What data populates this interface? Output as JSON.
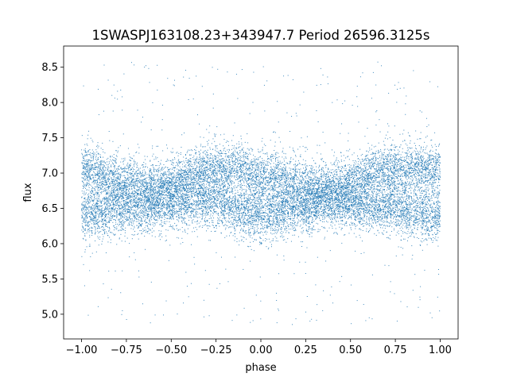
{
  "chart_data": {
    "type": "scatter",
    "title": "1SWASPJ163108.23+343947.7 Period 26596.3125s",
    "xlabel": "phase",
    "ylabel": "flux",
    "xlim": [
      -1.1,
      1.1
    ],
    "ylim": [
      4.65,
      8.8
    ],
    "x_ticks": [
      -1.0,
      -0.75,
      -0.5,
      -0.25,
      0.0,
      0.25,
      0.5,
      0.75,
      1.0
    ],
    "x_tick_labels": [
      "−1.00",
      "−0.75",
      "−0.50",
      "−0.25",
      "0.00",
      "0.25",
      "0.50",
      "0.75",
      "1.00"
    ],
    "y_ticks": [
      5.0,
      5.5,
      6.0,
      6.5,
      7.0,
      7.5,
      8.0,
      8.5
    ],
    "y_tick_labels": [
      "5.0",
      "5.5",
      "6.0",
      "6.5",
      "7.0",
      "7.5",
      "8.0",
      "8.5"
    ],
    "grid": false,
    "legend": "none",
    "marker_color": "#1f77b4",
    "series": [
      {
        "x_range": [
          -1.0,
          1.0
        ],
        "upper_band_center": [
          {
            "x": -1.0,
            "y": 7.05
          },
          {
            "x": -0.75,
            "y": 6.88
          },
          {
            "x": -0.6,
            "y": 6.82
          },
          {
            "x": -0.25,
            "y": 7.07
          },
          {
            "x": -0.15,
            "y": 7.08
          },
          {
            "x": 0.0,
            "y": 6.95
          },
          {
            "x": 0.25,
            "y": 6.82
          },
          {
            "x": 0.35,
            "y": 6.78
          },
          {
            "x": 0.75,
            "y": 7.05
          },
          {
            "x": 0.85,
            "y": 7.08
          },
          {
            "x": 1.0,
            "y": 7.05
          }
        ],
        "lower_band_center": [
          {
            "x": -1.0,
            "y": 6.4
          },
          {
            "x": -0.75,
            "y": 6.5
          },
          {
            "x": -0.6,
            "y": 6.55
          },
          {
            "x": -0.25,
            "y": 6.6
          },
          {
            "x": -0.1,
            "y": 6.45
          },
          {
            "x": 0.0,
            "y": 6.4
          },
          {
            "x": 0.25,
            "y": 6.5
          },
          {
            "x": 0.35,
            "y": 6.6
          },
          {
            "x": 0.75,
            "y": 6.5
          },
          {
            "x": 1.0,
            "y": 6.4
          }
        ],
        "y_range_outliers": [
          4.85,
          8.6
        ]
      }
    ]
  }
}
